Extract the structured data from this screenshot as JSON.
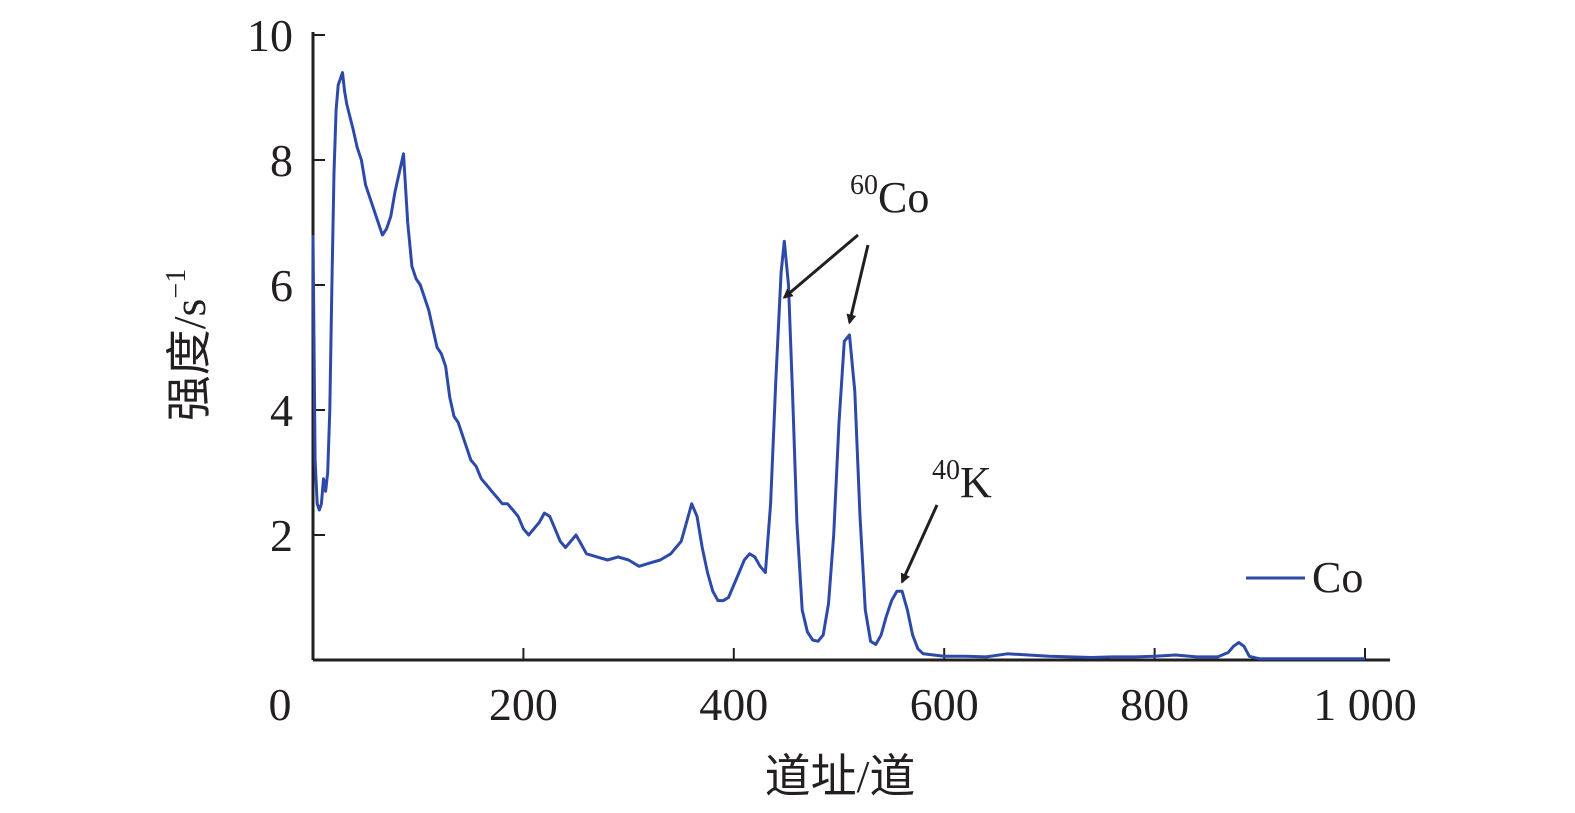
{
  "chart_data": {
    "type": "line",
    "xlabel": "道址/道",
    "ylabel": "强度/s⁻¹",
    "ylabel_main": "强度/s",
    "ylabel_sup": "−1",
    "xlim": [
      0,
      1000
    ],
    "ylim": [
      0,
      10
    ],
    "xticks": [
      0,
      200,
      400,
      600,
      800,
      1000
    ],
    "xtick_labels": [
      "0",
      "200",
      "400",
      "600",
      "800",
      "1 000"
    ],
    "yticks": [
      2,
      4,
      6,
      8,
      10
    ],
    "ytick_labels": [
      "2",
      "4",
      "6",
      "8",
      "10"
    ],
    "grid": false,
    "legend_position": "bottom-right",
    "annotations": [
      {
        "id": "co60",
        "sup": "60",
        "text": "Co",
        "targets": [
          [
            448,
            5.8
          ],
          [
            510,
            5.4
          ]
        ]
      },
      {
        "id": "k40",
        "sup": "40",
        "text": "K",
        "targets": [
          [
            560,
            1.25
          ]
        ]
      }
    ],
    "series": [
      {
        "name": "Co",
        "color": "#2e4aa8",
        "x": [
          0,
          2,
          4,
          6,
          8,
          10,
          12,
          14,
          16,
          18,
          20,
          22,
          24,
          26,
          28,
          30,
          32,
          35,
          38,
          42,
          46,
          50,
          54,
          58,
          62,
          66,
          70,
          74,
          78,
          82,
          86,
          90,
          94,
          98,
          102,
          106,
          110,
          114,
          118,
          122,
          126,
          130,
          134,
          138,
          142,
          146,
          150,
          155,
          160,
          165,
          170,
          175,
          180,
          185,
          190,
          195,
          200,
          205,
          210,
          215,
          220,
          225,
          230,
          235,
          240,
          245,
          250,
          255,
          260,
          270,
          280,
          290,
          300,
          310,
          320,
          330,
          340,
          350,
          355,
          360,
          365,
          370,
          375,
          380,
          385,
          390,
          395,
          400,
          405,
          410,
          415,
          420,
          425,
          430,
          435,
          440,
          445,
          448,
          452,
          456,
          460,
          465,
          470,
          475,
          480,
          485,
          490,
          495,
          500,
          505,
          510,
          515,
          520,
          525,
          530,
          535,
          540,
          545,
          550,
          555,
          560,
          565,
          570,
          575,
          580,
          590,
          600,
          620,
          640,
          660,
          680,
          700,
          720,
          740,
          760,
          780,
          800,
          820,
          840,
          860,
          870,
          875,
          880,
          885,
          890,
          900,
          920,
          940,
          960,
          980,
          1000
        ],
        "y": [
          6.8,
          3.2,
          2.5,
          2.4,
          2.5,
          2.9,
          2.7,
          3.0,
          4.0,
          6.0,
          7.8,
          8.8,
          9.2,
          9.3,
          9.4,
          9.1,
          8.9,
          8.7,
          8.5,
          8.2,
          8.0,
          7.6,
          7.4,
          7.2,
          7.0,
          6.8,
          6.9,
          7.1,
          7.5,
          7.8,
          8.1,
          7.0,
          6.3,
          6.1,
          6.0,
          5.8,
          5.6,
          5.3,
          5.0,
          4.9,
          4.7,
          4.2,
          3.9,
          3.8,
          3.6,
          3.4,
          3.2,
          3.1,
          2.9,
          2.8,
          2.7,
          2.6,
          2.5,
          2.5,
          2.4,
          2.3,
          2.1,
          2.0,
          2.1,
          2.2,
          2.35,
          2.3,
          2.1,
          1.9,
          1.8,
          1.9,
          2.0,
          1.85,
          1.7,
          1.65,
          1.6,
          1.65,
          1.6,
          1.5,
          1.55,
          1.6,
          1.7,
          1.9,
          2.2,
          2.5,
          2.3,
          1.8,
          1.4,
          1.1,
          0.95,
          0.95,
          1.0,
          1.2,
          1.4,
          1.6,
          1.7,
          1.65,
          1.5,
          1.4,
          2.5,
          4.5,
          6.2,
          6.7,
          6.0,
          4.2,
          2.2,
          0.8,
          0.45,
          0.32,
          0.3,
          0.4,
          0.9,
          2.0,
          3.8,
          5.1,
          5.2,
          4.3,
          2.3,
          0.8,
          0.3,
          0.25,
          0.4,
          0.7,
          0.95,
          1.1,
          1.1,
          0.8,
          0.4,
          0.18,
          0.1,
          0.08,
          0.06,
          0.06,
          0.05,
          0.1,
          0.08,
          0.06,
          0.05,
          0.04,
          0.05,
          0.05,
          0.06,
          0.08,
          0.05,
          0.05,
          0.12,
          0.22,
          0.28,
          0.22,
          0.06,
          0.02,
          0.02,
          0.02,
          0.02,
          0.02,
          0.02
        ]
      }
    ]
  }
}
